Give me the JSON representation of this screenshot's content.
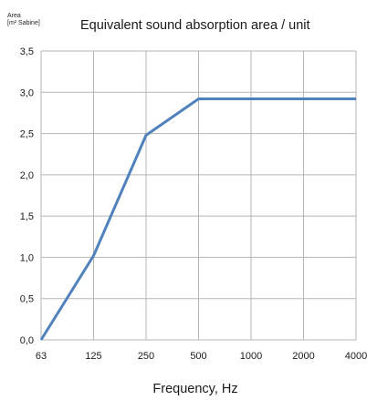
{
  "chart_data": {
    "type": "line",
    "title": "Equivalent sound absorption area / unit",
    "ylabel_line1": "Area",
    "ylabel_line2": "[m² Sabine]",
    "xlabel": "Frequency, Hz",
    "categories": [
      "63",
      "125",
      "250",
      "500",
      "1000",
      "2000",
      "4000"
    ],
    "series": [
      {
        "values": [
          0.0,
          1.02,
          2.48,
          2.92,
          2.92,
          2.92,
          2.92
        ]
      }
    ],
    "ylim": [
      0,
      3.5
    ],
    "yticks": [
      "0,0",
      "0,5",
      "1,0",
      "1,5",
      "2,0",
      "2,5",
      "3,0",
      "3,5"
    ],
    "ytick_values": [
      0,
      0.5,
      1,
      1.5,
      2,
      2.5,
      3,
      3.5
    ],
    "grid": true,
    "line_color": "#4f81bd",
    "grid_color": "#b5b5b5"
  }
}
